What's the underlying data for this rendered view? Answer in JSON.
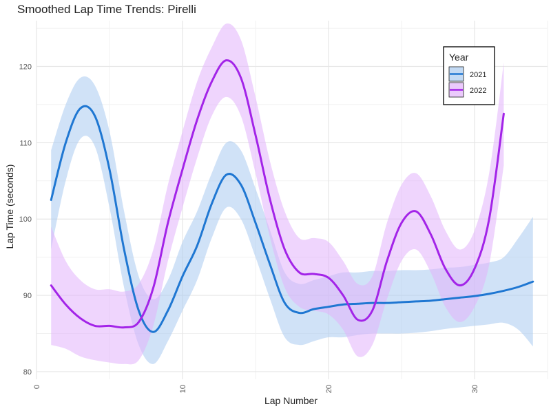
{
  "chart_data": {
    "type": "line",
    "title": "Smoothed Lap Time Trends: Pirelli",
    "xlabel": "Lap Number",
    "ylabel": "Lap Time (seconds)",
    "xlim": [
      0,
      35
    ],
    "ylim": [
      79,
      126
    ],
    "x_ticks": [
      0,
      10,
      20,
      30
    ],
    "y_ticks": [
      80,
      90,
      100,
      110,
      120
    ],
    "grid": true,
    "legend": {
      "title": "Year",
      "position": "top-right"
    },
    "series": [
      {
        "name": "2021",
        "color": "#1f77d2",
        "band_color": "#a9caf0",
        "points": [
          [
            1,
            102.5,
            96.0,
            109.0
          ],
          [
            2,
            110.0,
            105.0,
            115.0
          ],
          [
            3,
            114.5,
            110.5,
            118.5
          ],
          [
            4,
            113.5,
            109.5,
            117.5
          ],
          [
            5,
            106.5,
            101.5,
            111.5
          ],
          [
            6,
            96.0,
            91.0,
            101.0
          ],
          [
            7,
            88.0,
            83.5,
            92.5
          ],
          [
            8,
            85.2,
            81.0,
            89.5
          ],
          [
            9,
            88.0,
            84.0,
            92.0
          ],
          [
            10,
            92.5,
            88.0,
            97.0
          ],
          [
            11,
            96.5,
            92.0,
            101.0
          ],
          [
            12,
            102.0,
            97.5,
            106.0
          ],
          [
            13,
            105.8,
            101.5,
            110.0
          ],
          [
            14,
            104.5,
            100.0,
            109.0
          ],
          [
            15,
            99.5,
            95.0,
            104.0
          ],
          [
            16,
            94.0,
            89.5,
            98.5
          ],
          [
            17,
            89.0,
            84.5,
            93.0
          ],
          [
            18,
            87.7,
            83.5,
            91.5
          ],
          [
            19,
            88.2,
            84.0,
            92.0
          ],
          [
            20,
            88.5,
            84.5,
            92.5
          ],
          [
            21,
            88.8,
            84.5,
            93.0
          ],
          [
            22,
            88.9,
            84.8,
            93.0
          ],
          [
            23,
            89.0,
            85.0,
            93.2
          ],
          [
            24,
            89.0,
            85.0,
            93.2
          ],
          [
            25,
            89.1,
            85.0,
            93.3
          ],
          [
            26,
            89.2,
            85.1,
            93.3
          ],
          [
            27,
            89.3,
            85.3,
            93.4
          ],
          [
            28,
            89.5,
            85.6,
            93.6
          ],
          [
            29,
            89.7,
            85.8,
            93.7
          ],
          [
            30,
            89.9,
            86.0,
            94.0
          ],
          [
            31,
            90.2,
            86.2,
            94.3
          ],
          [
            32,
            90.6,
            86.4,
            95.0
          ],
          [
            33,
            91.1,
            85.5,
            97.5
          ],
          [
            34,
            91.8,
            83.3,
            100.3
          ]
        ]
      },
      {
        "name": "2022",
        "color": "#a324e8",
        "band_color": "#e2b3fb",
        "points": [
          [
            1,
            91.3,
            83.5,
            99.0
          ],
          [
            2,
            88.8,
            83.0,
            94.5
          ],
          [
            3,
            87.0,
            82.0,
            92.0
          ],
          [
            4,
            86.0,
            81.5,
            90.8
          ],
          [
            5,
            86.0,
            81.2,
            90.8
          ],
          [
            6,
            85.8,
            81.0,
            90.5
          ],
          [
            7,
            86.5,
            81.5,
            91.5
          ],
          [
            8,
            91.0,
            86.0,
            96.0
          ],
          [
            9,
            99.5,
            94.5,
            104.5
          ],
          [
            10,
            106.5,
            101.5,
            111.5
          ],
          [
            11,
            113.0,
            108.0,
            118.0
          ],
          [
            12,
            118.0,
            113.5,
            122.5
          ],
          [
            13,
            120.8,
            116.0,
            125.6
          ],
          [
            14,
            118.5,
            113.5,
            123.5
          ],
          [
            15,
            111.0,
            106.0,
            116.0
          ],
          [
            16,
            102.5,
            97.5,
            107.5
          ],
          [
            17,
            96.0,
            91.0,
            101.0
          ],
          [
            18,
            93.0,
            88.5,
            97.5
          ],
          [
            19,
            92.8,
            88.0,
            97.5
          ],
          [
            20,
            92.3,
            87.5,
            97.0
          ],
          [
            21,
            90.0,
            85.5,
            94.5
          ],
          [
            22,
            86.8,
            82.0,
            91.5
          ],
          [
            23,
            88.0,
            83.5,
            92.5
          ],
          [
            24,
            94.5,
            89.5,
            99.5
          ],
          [
            25,
            99.5,
            94.5,
            104.5
          ],
          [
            26,
            101.0,
            96.0,
            106.0
          ],
          [
            27,
            98.0,
            93.0,
            103.0
          ],
          [
            28,
            93.5,
            88.5,
            98.5
          ],
          [
            29,
            91.3,
            86.5,
            96.0
          ],
          [
            30,
            93.5,
            88.5,
            98.5
          ],
          [
            31,
            100.0,
            94.0,
            106.0
          ],
          [
            32,
            113.8,
            107.0,
            120.5
          ]
        ]
      }
    ]
  }
}
